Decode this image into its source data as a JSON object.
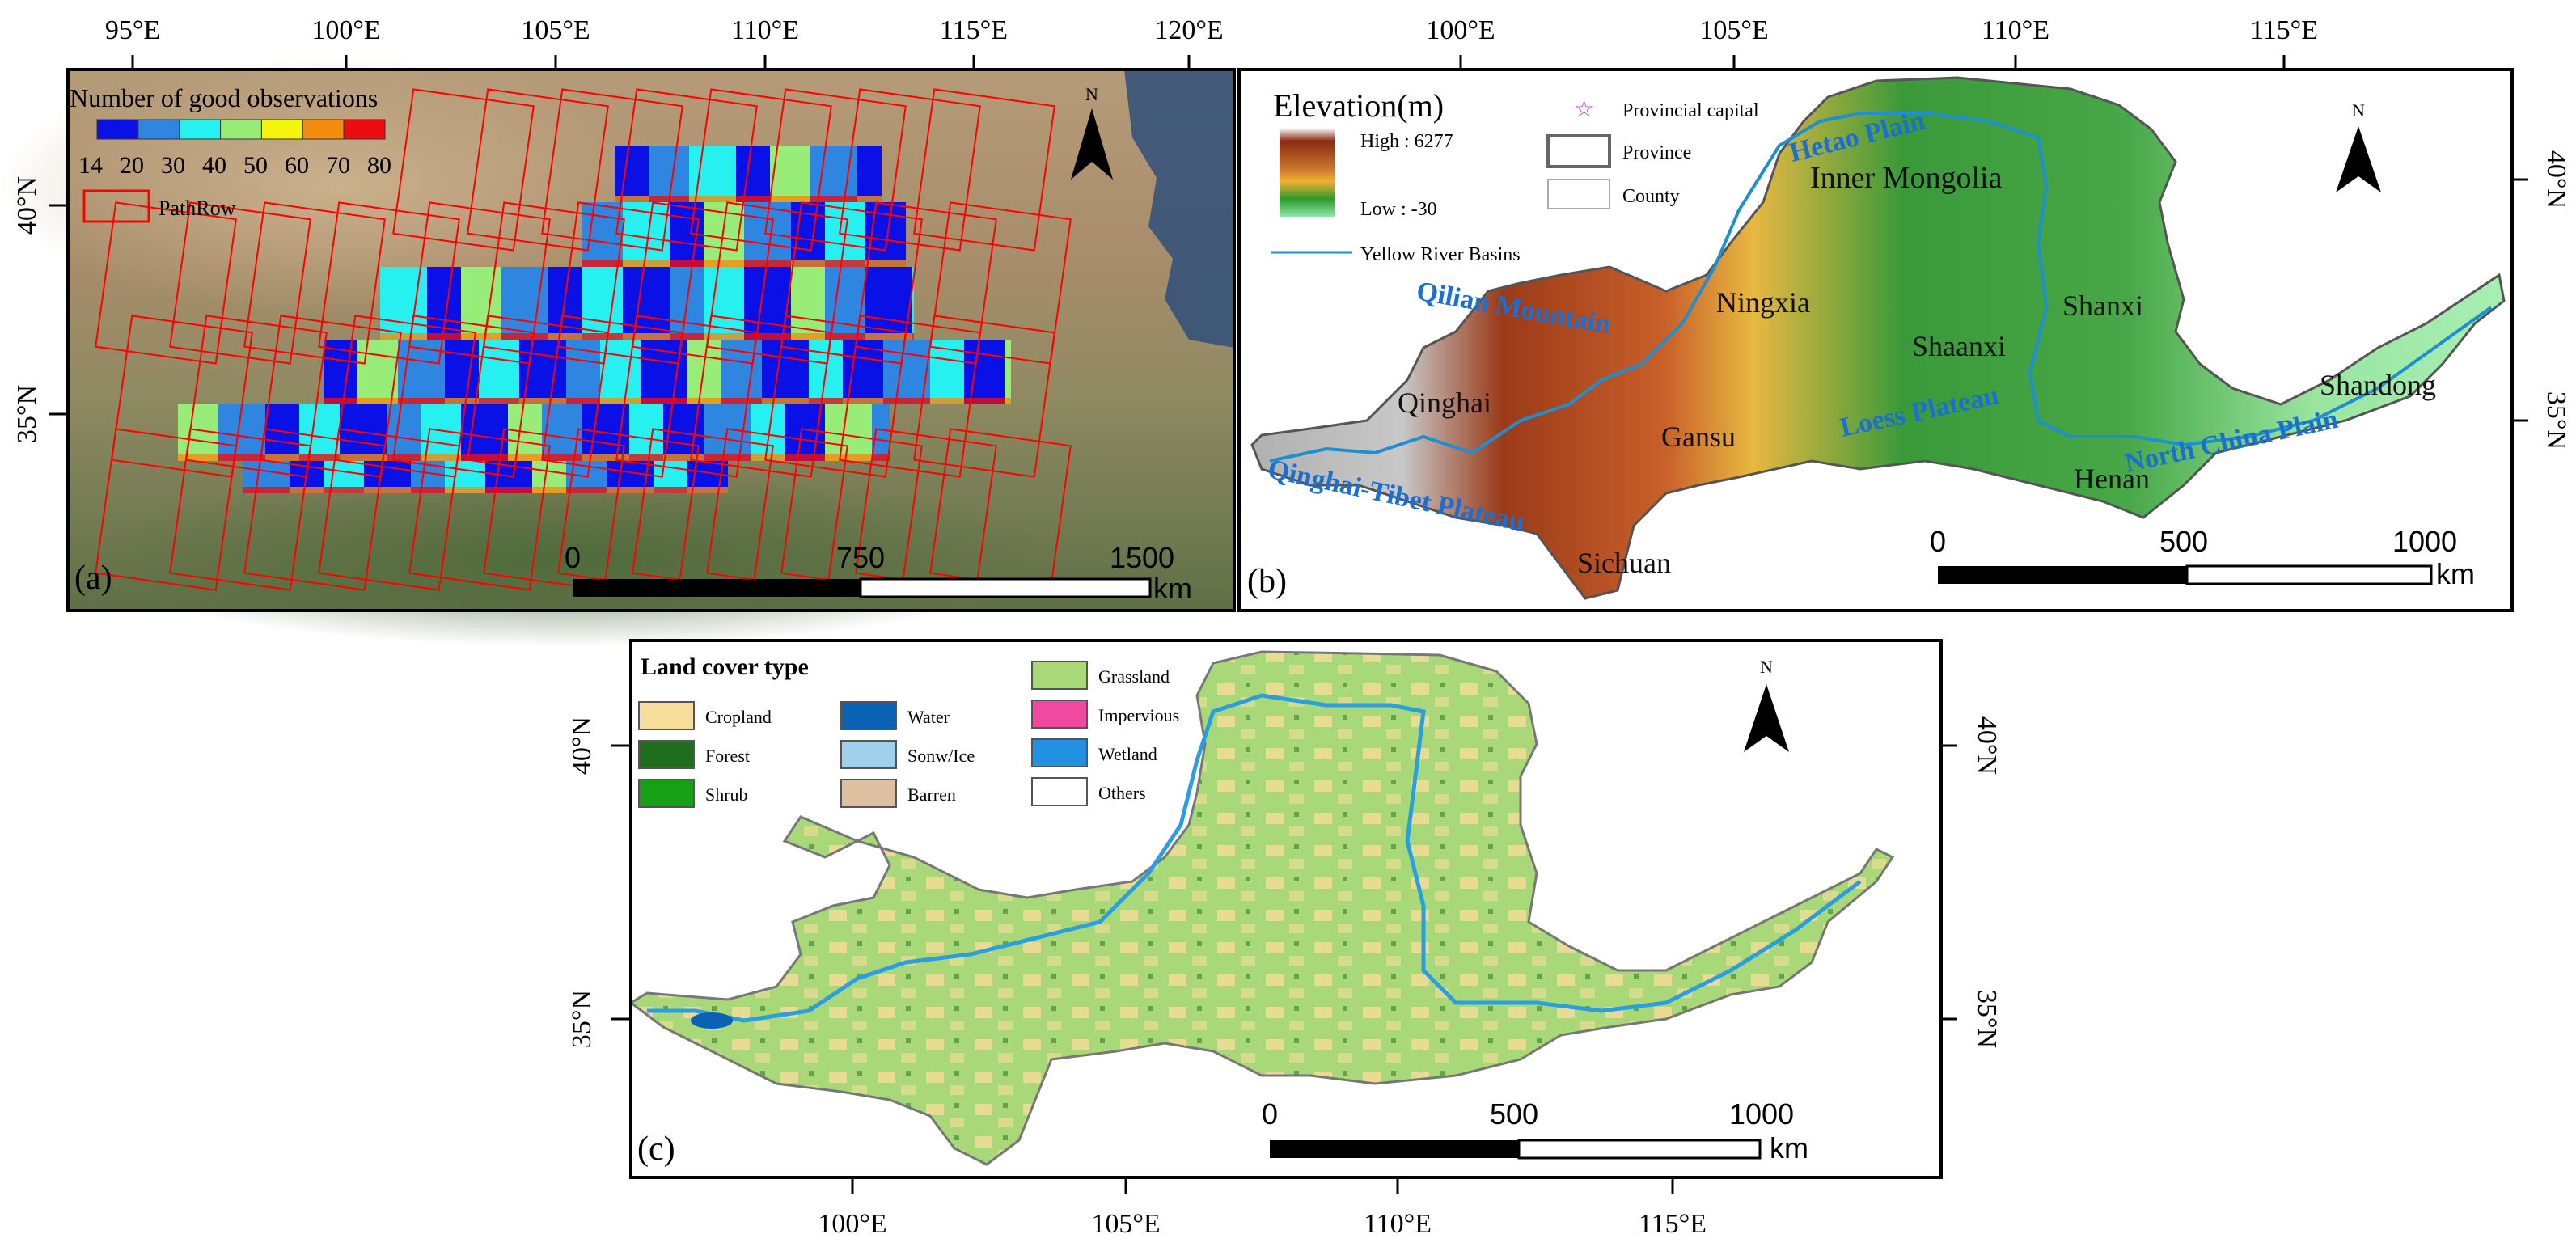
{
  "panel_a": {
    "label": "(a)",
    "legend_title": "Number of good observations",
    "colorbar": {
      "ticks": [
        "14",
        "20",
        "30",
        "40",
        "50",
        "60",
        "70",
        "80"
      ],
      "colors": [
        "#0a11e6",
        "#2e86e0",
        "#26f0f0",
        "#98ec78",
        "#f4f40e",
        "#f48c0e",
        "#ec0e0e"
      ]
    },
    "pathrow_label": "PathRow",
    "pathrow_color": "#ff0000",
    "north": "N",
    "lon_ticks": [
      "95°E",
      "100°E",
      "105°E",
      "110°E",
      "115°E",
      "120°E"
    ],
    "lat_ticks": [
      "40°N",
      "35°N"
    ],
    "scale_ticks": [
      "0",
      "750",
      "1500"
    ],
    "scale_unit": "km"
  },
  "panel_b": {
    "label": "(b)",
    "legend": {
      "title": "Elevation(m)",
      "high": "High : 6277",
      "low": "Low : -30",
      "provincial_capital": "Provincial capital",
      "province": "Province",
      "county": "County",
      "river": "Yellow River Basins"
    },
    "elevation_colors": [
      "#8a2a10",
      "#c9722b",
      "#f0b030",
      "#2f9a2f",
      "#8fe6a8"
    ],
    "north": "N",
    "lon_ticks": [
      "100°E",
      "105°E",
      "110°E",
      "115°E"
    ],
    "lat_ticks": [
      "40°N",
      "35°N"
    ],
    "provinces": [
      "Inner Mongolia",
      "Ningxia",
      "Shanxi",
      "Shaanxi",
      "Qinghai",
      "Gansu",
      "Shandong",
      "Henan",
      "Sichuan"
    ],
    "regions": [
      "Hetao Plain",
      "Qilian Mountain",
      "Loess Plateau",
      "North China Plain",
      "Qinghai-Tibet Plateau"
    ],
    "scale_ticks": [
      "0",
      "500",
      "1000"
    ],
    "scale_unit": "km"
  },
  "panel_c": {
    "label": "(c)",
    "legend_title": "Land cover type",
    "classes": [
      {
        "name": "Cropland",
        "color": "#f7dd9c"
      },
      {
        "name": "Forest",
        "color": "#1e6e1e"
      },
      {
        "name": "Shrub",
        "color": "#16a016"
      },
      {
        "name": "Water",
        "color": "#0a62b4"
      },
      {
        "name": "Sonw/Ice",
        "color": "#9fd1ec"
      },
      {
        "name": "Barren",
        "color": "#dcc0a0"
      },
      {
        "name": "Grassland",
        "color": "#a8d878"
      },
      {
        "name": "Impervious",
        "color": "#f04aa0"
      },
      {
        "name": "Wetland",
        "color": "#2090e0"
      },
      {
        "name": "Others",
        "color": "#ffffff"
      }
    ],
    "north": "N",
    "lon_ticks": [
      "100°E",
      "105°E",
      "110°E",
      "115°E"
    ],
    "lat_ticks": [
      "40°N",
      "35°N"
    ],
    "scale_ticks": [
      "0",
      "500",
      "1000"
    ],
    "scale_unit": "km"
  }
}
